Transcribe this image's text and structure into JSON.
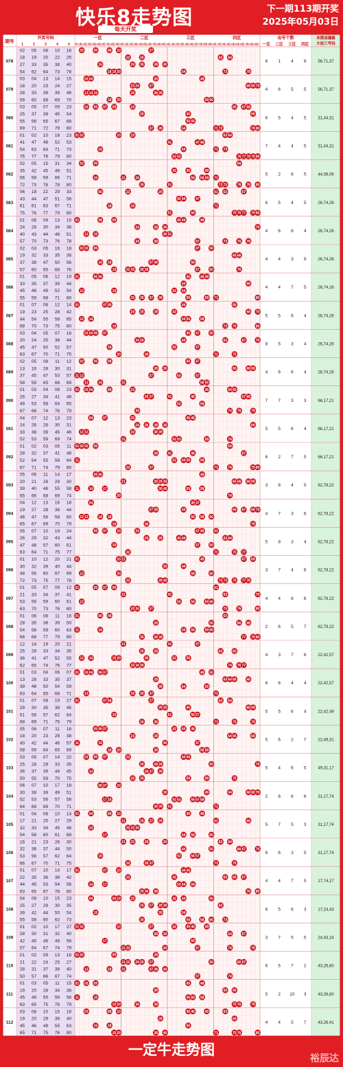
{
  "header": {
    "title": "快乐8走势图",
    "subtitle": "每天开奖",
    "next_line1": "下一期113期开奖",
    "next_line2": "2025年05月03日"
  },
  "footer": {
    "title": "一定牛走势图",
    "brand": "裕辰达"
  },
  "columns": {
    "issue": "期号",
    "draw": "开奖号码",
    "draw_sub": [
      "1",
      "2",
      "3",
      "4",
      "5"
    ],
    "zones": [
      "一区",
      "二区",
      "三区",
      "四区"
    ],
    "tails": [
      "尾1",
      "尾2",
      "尾3",
      "尾4",
      "尾5",
      "尾6",
      "尾7",
      "尾8",
      "尾9",
      "尾0"
    ],
    "count_title": "出号个数",
    "count_sub": [
      "一区",
      "二区",
      "三区",
      "四区"
    ],
    "filter_title": "本期滤漏最",
    "filter_sub": "大前三号码"
  },
  "colors": {
    "brand_red": "#e01e24",
    "ball": "#c9151e",
    "draw_col_bg": "#ffffff",
    "left_strip": "#e7dcf3",
    "filter_bg": "#d9f2dc",
    "grid": "#f0b9b9"
  },
  "chart_data": {
    "type": "table",
    "rows": [
      {
        "issue": "078",
        "nums": [
          2,
          5,
          8,
          10,
          16,
          18,
          19,
          20,
          22,
          25,
          27,
          33,
          35,
          38,
          40,
          54,
          62,
          64,
          73,
          78
        ],
        "counts": [
          6,
          1,
          4,
          9
        ],
        "filter": "56,71,37"
      },
      {
        "issue": "079",
        "nums": [
          3,
          4,
          13,
          14,
          15,
          18,
          20,
          23,
          24,
          27,
          28,
          33,
          38,
          39,
          48,
          59,
          60,
          68,
          69,
          70
        ],
        "counts": [
          4,
          6,
          5,
          5
        ],
        "filter": "56,71,37"
      },
      {
        "issue": "080",
        "nums": [
          3,
          5,
          7,
          9,
          23,
          25,
          37,
          39,
          45,
          54,
          55,
          56,
          65,
          67,
          68,
          69,
          71,
          72,
          79,
          80
        ],
        "counts": [
          6,
          5,
          4,
          5
        ],
        "filter": "31,44,31"
      },
      {
        "issue": "081",
        "nums": [
          1,
          2,
          10,
          16,
          23,
          41,
          47,
          48,
          52,
          53,
          54,
          63,
          64,
          71,
          73,
          76,
          77,
          78,
          79,
          80
        ],
        "counts": [
          7,
          4,
          4,
          5
        ],
        "filter": "31,44,31"
      },
      {
        "issue": "082",
        "nums": [
          2,
          5,
          15,
          31,
          34,
          35,
          42,
          45,
          49,
          51,
          56,
          58,
          59,
          66,
          71,
          72,
          73,
          76,
          78,
          80
        ],
        "counts": [
          5,
          2,
          8,
          5
        ],
        "filter": "44,08,06"
      },
      {
        "issue": "083",
        "nums": [
          6,
          18,
          22,
          29,
          33,
          43,
          44,
          47,
          51,
          56,
          61,
          63,
          67,
          71,
          75,
          76,
          77,
          79,
          80,
          61
        ],
        "counts": [
          6,
          5,
          4,
          5
        ],
        "filter": "26,74,26"
      },
      {
        "issue": "084",
        "nums": [
          1,
          6,
          9,
          13,
          15,
          24,
          28,
          30,
          34,
          38,
          40,
          43,
          44,
          48,
          51,
          57,
          70,
          73,
          76,
          78
        ],
        "counts": [
          4,
          6,
          6,
          4
        ],
        "filter": "26,74,26"
      },
      {
        "issue": "085",
        "nums": [
          2,
          3,
          5,
          16,
          18,
          19,
          32,
          33,
          35,
          36,
          37,
          38,
          47,
          50,
          56,
          57,
          60,
          65,
          66,
          76
        ],
        "counts": [
          4,
          4,
          3,
          9
        ],
        "filter": "26,74,26"
      },
      {
        "issue": "086",
        "nums": [
          1,
          5,
          6,
          12,
          19,
          33,
          35,
          37,
          39,
          44,
          45,
          48,
          49,
          52,
          54,
          55,
          59,
          68,
          71,
          80
        ],
        "counts": [
          4,
          4,
          7,
          5
        ],
        "filter": "26,74,26"
      },
      {
        "issue": "087",
        "nums": [
          1,
          7,
          8,
          12,
          14,
          19,
          23,
          25,
          28,
          42,
          44,
          54,
          55,
          58,
          65,
          68,
          70,
          73,
          75,
          80
        ],
        "counts": [
          5,
          5,
          6,
          4
        ],
        "filter": "26,74,26"
      },
      {
        "issue": "088",
        "nums": [
          3,
          4,
          5,
          7,
          20,
          18,
          24,
          25,
          36,
          44,
          45,
          47,
          50,
          52,
          57,
          63,
          67,
          70,
          71,
          75
        ],
        "counts": [
          8,
          5,
          3,
          4
        ],
        "filter": "26,74,26"
      },
      {
        "issue": "089",
        "nums": [
          2,
          5,
          8,
          11,
          12,
          13,
          16,
          28,
          30,
          31,
          37,
          45,
          47,
          53,
          57,
          58,
          59,
          65,
          68,
          69
        ],
        "counts": [
          4,
          6,
          6,
          4
        ],
        "filter": "26,74,26"
      },
      {
        "issue": "090",
        "nums": [
          1,
          3,
          4,
          8,
          23,
          26,
          27,
          34,
          41,
          46,
          49,
          53,
          58,
          64,
          65,
          67,
          68,
          74,
          76,
          79
        ],
        "counts": [
          7,
          7,
          3,
          3
        ],
        "filter": "66,17,21"
      },
      {
        "issue": "091",
        "nums": [
          4,
          7,
          12,
          13,
          23,
          24,
          26,
          28,
          30,
          31,
          33,
          38,
          39,
          45,
          46,
          52,
          53,
          59,
          69,
          74
        ],
        "counts": [
          5,
          5,
          6,
          4
        ],
        "filter": "66,17,21"
      },
      {
        "issue": "092",
        "nums": [
          1,
          2,
          3,
          5,
          11,
          28,
          32,
          37,
          41,
          46,
          52,
          54,
          55,
          58,
          64,
          67,
          71,
          74,
          79,
          80
        ],
        "counts": [
          6,
          2,
          7,
          5
        ],
        "filter": "66,17,21"
      },
      {
        "issue": "093",
        "nums": [
          5,
          6,
          11,
          14,
          17,
          20,
          21,
          28,
          29,
          30,
          39,
          40,
          48,
          55,
          58,
          65,
          66,
          68,
          69,
          74
        ],
        "counts": [
          3,
          8,
          4,
          5
        ],
        "filter": "62,78,22"
      },
      {
        "issue": "094",
        "nums": [
          4,
          12,
          13,
          16,
          18,
          19,
          27,
          28,
          36,
          44,
          46,
          47,
          56,
          58,
          60,
          65,
          67,
          69,
          70,
          79
        ],
        "counts": [
          4,
          7,
          3,
          6
        ],
        "filter": "62,78,22"
      },
      {
        "issue": "095",
        "nums": [
          5,
          7,
          10,
          19,
          24,
          26,
          29,
          32,
          43,
          44,
          47,
          48,
          57,
          60,
          61,
          63,
          64,
          71,
          75,
          77
        ],
        "counts": [
          5,
          8,
          3,
          4
        ],
        "filter": "62,78,22"
      },
      {
        "issue": "096",
        "nums": [
          1,
          10,
          12,
          20,
          21,
          30,
          32,
          39,
          40,
          44,
          48,
          56,
          60,
          67,
          69,
          72,
          73,
          77,
          78,
          75
        ],
        "counts": [
          3,
          7,
          4,
          6
        ],
        "filter": "62,78,22"
      },
      {
        "issue": "097",
        "nums": [
          1,
          5,
          7,
          9,
          12,
          21,
          33,
          34,
          37,
          41,
          53,
          56,
          59,
          60,
          61,
          63,
          70,
          73,
          76,
          80
        ],
        "counts": [
          4,
          4,
          6,
          6
        ],
        "filter": "62,78,22"
      },
      {
        "issue": "098",
        "nums": [
          1,
          6,
          8,
          11,
          16,
          28,
          35,
          38,
          39,
          50,
          54,
          56,
          59,
          60,
          63,
          66,
          68,
          77,
          79,
          80
        ],
        "counts": [
          2,
          6,
          5,
          7
        ],
        "filter": "62,78,22"
      },
      {
        "issue": "099",
        "nums": [
          12,
          14,
          19,
          20,
          21,
          25,
          28,
          33,
          34,
          35,
          36,
          41,
          47,
          52,
          55,
          62,
          65,
          74,
          76,
          77
        ],
        "counts": [
          4,
          3,
          7,
          6
        ],
        "filter": "22,42,57"
      },
      {
        "issue": "100",
        "nums": [
          1,
          3,
          4,
          6,
          7,
          13,
          28,
          33,
          35,
          37,
          39,
          48,
          50,
          54,
          59,
          63,
          64,
          65,
          68,
          71
        ],
        "counts": [
          6,
          6,
          4,
          4
        ],
        "filter": "22,42,57"
      },
      {
        "issue": "101",
        "nums": [
          1,
          7,
          8,
          19,
          27,
          29,
          30,
          35,
          38,
          45,
          51,
          56,
          57,
          62,
          64,
          68,
          69,
          71,
          75,
          79
        ],
        "counts": [
          5,
          5,
          6,
          4
        ],
        "filter": "22,42,49"
      },
      {
        "issue": "102",
        "nums": [
          5,
          6,
          7,
          11,
          16,
          18,
          20,
          23,
          28,
          38,
          40,
          42,
          44,
          46,
          57,
          58,
          59,
          64,
          65,
          69
        ],
        "counts": [
          5,
          6,
          2,
          7
        ],
        "filter": "22,49,31"
      },
      {
        "issue": "103",
        "nums": [
          3,
          5,
          7,
          14,
          22,
          25,
          28,
          29,
          33,
          35,
          36,
          37,
          39,
          44,
          45,
          50,
          55,
          59,
          70,
          75
        ],
        "counts": [
          5,
          4,
          6,
          5
        ],
        "filter": "49,31,17"
      },
      {
        "issue": "104",
        "nums": [
          6,
          7,
          10,
          17,
          18,
          30,
          38,
          39,
          49,
          51,
          52,
          53,
          56,
          57,
          58,
          64,
          68,
          69,
          70,
          71
        ],
        "counts": [
          2,
          6,
          6,
          6
        ],
        "filter": "31,17,74"
      },
      {
        "issue": "105",
        "nums": [
          1,
          4,
          8,
          10,
          14,
          17,
          21,
          25,
          27,
          29,
          32,
          33,
          34,
          45,
          48,
          54,
          56,
          60,
          61,
          68
        ],
        "counts": [
          5,
          7,
          5,
          3
        ],
        "filter": "31,17,74"
      },
      {
        "issue": "106",
        "nums": [
          16,
          21,
          23,
          26,
          30,
          32,
          36,
          37,
          44,
          50,
          53,
          56,
          57,
          62,
          64,
          66,
          67,
          70,
          71,
          75
        ],
        "counts": [
          6,
          6,
          3,
          5
        ],
        "filter": "31,17,74"
      },
      {
        "issue": "107",
        "nums": [
          1,
          7,
          10,
          14,
          17,
          22,
          35,
          36,
          38,
          42,
          44,
          45,
          53,
          54,
          56,
          63,
          65,
          67,
          78,
          80
        ],
        "counts": [
          4,
          4,
          7,
          5
        ],
        "filter": "17,74,17"
      },
      {
        "issue": "108",
        "nums": [
          4,
          9,
          10,
          15,
          23,
          25,
          27,
          29,
          30,
          35,
          39,
          42,
          44,
          50,
          54,
          55,
          58,
          60,
          62,
          73
        ],
        "counts": [
          6,
          5,
          6,
          3
        ],
        "filter": "17,24,43"
      },
      {
        "issue": "109",
        "nums": [
          1,
          2,
          10,
          17,
          27,
          28,
          30,
          31,
          32,
          40,
          42,
          45,
          46,
          49,
          56,
          57,
          64,
          67,
          74,
          79
        ],
        "counts": [
          3,
          7,
          5,
          5
        ],
        "filter": "24,43,24"
      },
      {
        "issue": "110",
        "nums": [
          1,
          2,
          9,
          13,
          18,
          21,
          22,
          24,
          25,
          27,
          28,
          31,
          37,
          38,
          40,
          50,
          57,
          66,
          67,
          74
        ],
        "counts": [
          6,
          5,
          7,
          2
        ],
        "filter": "43,26,80"
      },
      {
        "issue": "111",
        "nums": [
          1,
          3,
          5,
          11,
          15,
          19,
          20,
          28,
          34,
          38,
          45,
          48,
          55,
          56,
          58,
          63,
          65,
          75,
          76,
          79
        ],
        "counts": [
          5,
          2,
          10,
          3
        ],
        "filter": "43,26,80"
      },
      {
        "issue": "112",
        "nums": [
          3,
          8,
          10,
          15,
          18,
          19,
          20,
          29,
          38,
          40,
          45,
          46,
          49,
          55,
          63,
          65,
          71,
          75,
          76,
          80
        ],
        "counts": [
          4,
          4,
          5,
          7
        ],
        "filter": "43,26,41"
      }
    ]
  }
}
